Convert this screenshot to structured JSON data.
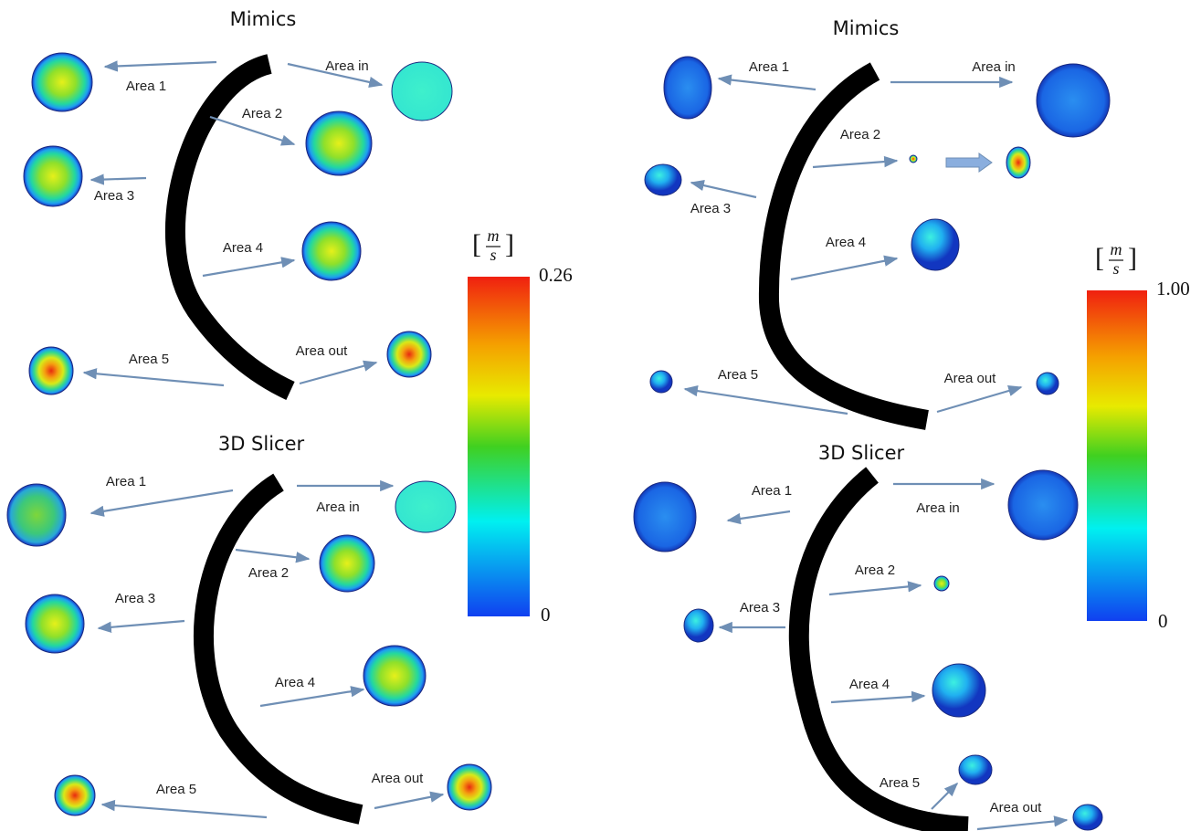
{
  "panels": [
    {
      "sections": [
        {
          "title": "Mimics",
          "labels": [
            "Area 1",
            "Area 2",
            "Area 3",
            "Area 4",
            "Area 5",
            "Area in",
            "Area out"
          ]
        },
        {
          "title": "3D Slicer",
          "labels": [
            "Area 1",
            "Area 2",
            "Area 3",
            "Area 4",
            "Area 5",
            "Area in",
            "Area out"
          ]
        }
      ],
      "colorbar": {
        "unit_open": "[",
        "numerator": "m",
        "denominator": "s",
        "unit_close": "]",
        "max": "0.26",
        "min": "0"
      }
    },
    {
      "sections": [
        {
          "title": "Mimics",
          "labels": [
            "Area 1",
            "Area 2",
            "Area 3",
            "Area 4",
            "Area 5",
            "Area in",
            "Area out"
          ]
        },
        {
          "title": "3D Slicer",
          "labels": [
            "Area 1",
            "Area 2",
            "Area 3",
            "Area 4",
            "Area 5",
            "Area in",
            "Area out"
          ]
        }
      ],
      "colorbar": {
        "unit_open": "[",
        "numerator": "m",
        "denominator": "s",
        "unit_close": "]",
        "max": "1.00",
        "min": "0"
      }
    }
  ]
}
